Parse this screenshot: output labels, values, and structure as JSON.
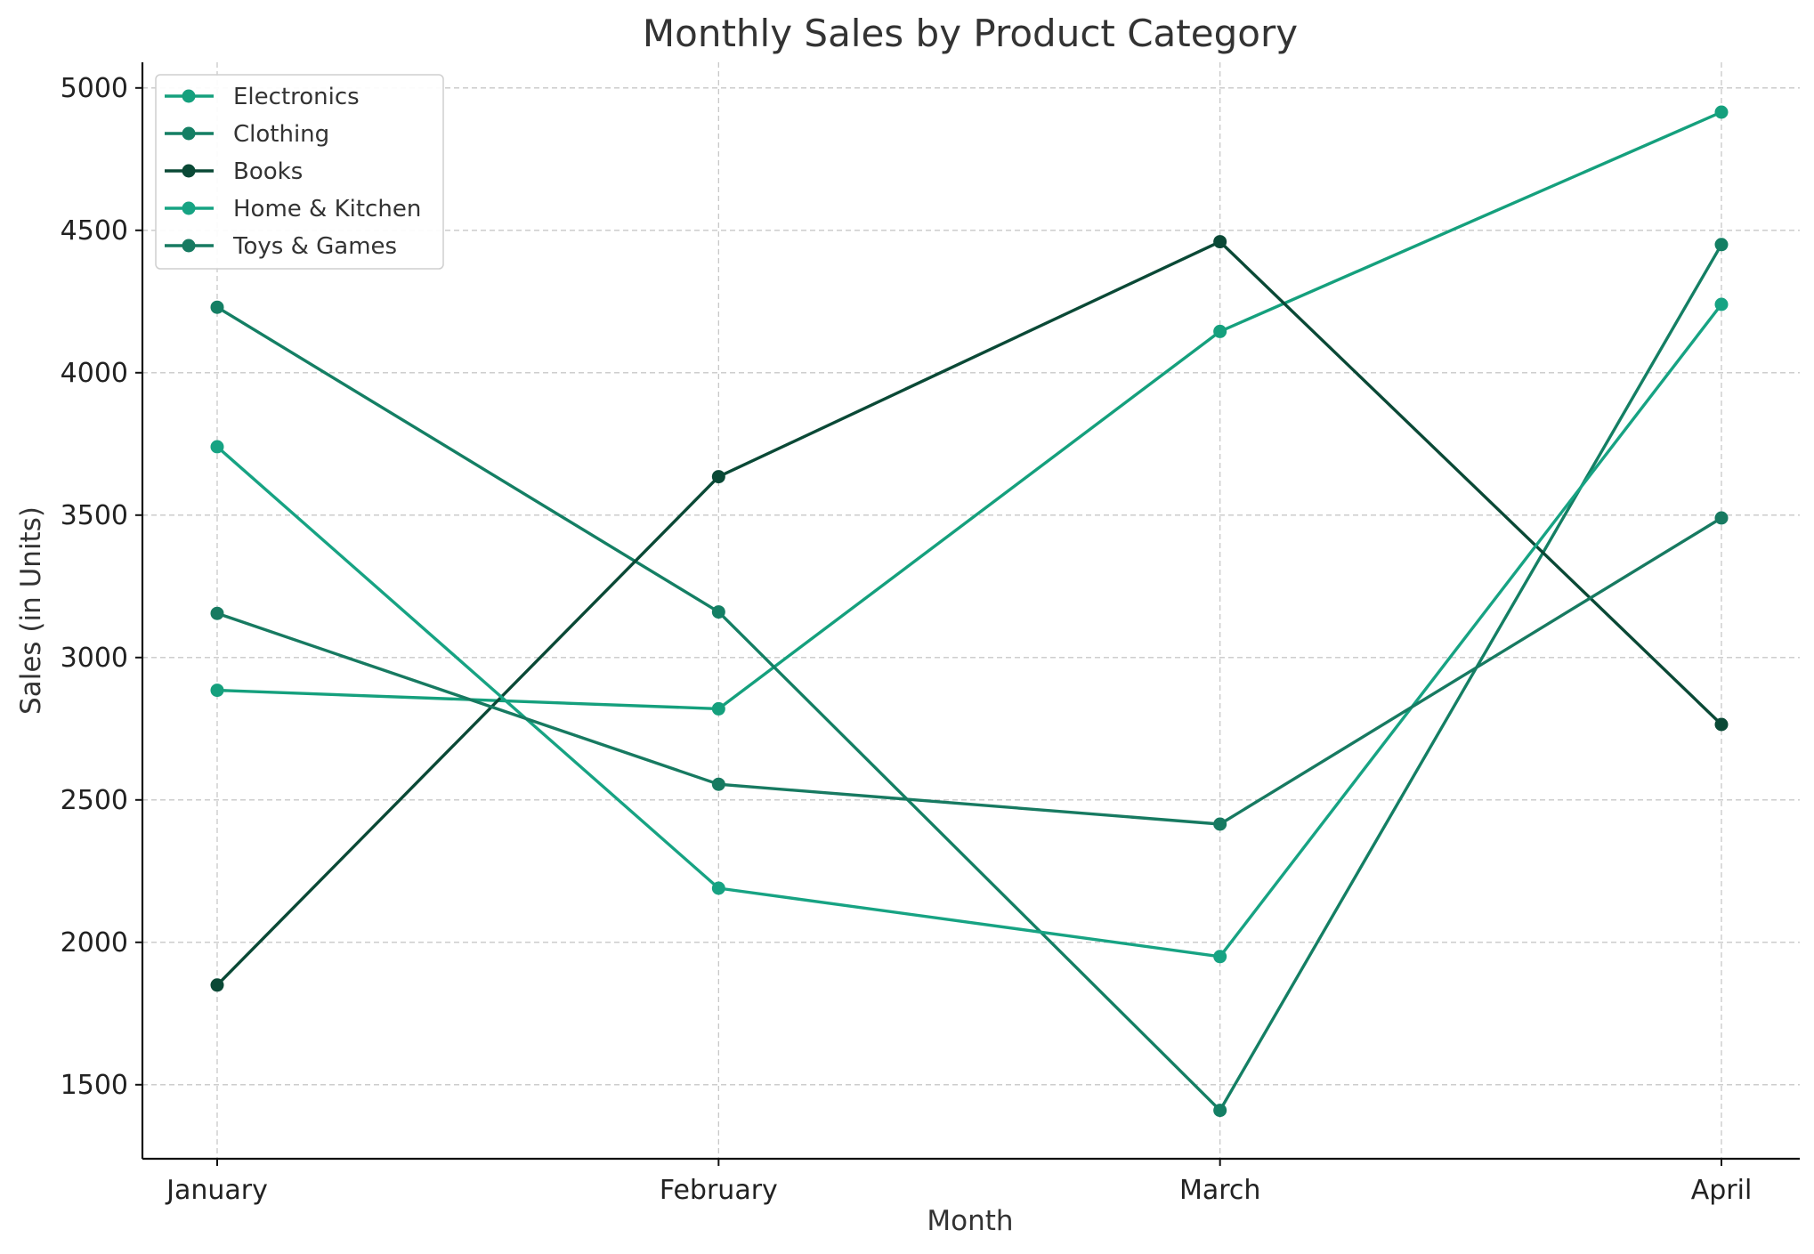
{
  "chart_data": {
    "type": "line",
    "title": "Monthly Sales by Product Category",
    "xlabel": "Month",
    "ylabel": "Sales (in Units)",
    "categories": [
      "January",
      "February",
      "March",
      "April"
    ],
    "ylim": [
      1240,
      5090
    ],
    "yticks": [
      1500,
      2000,
      2500,
      3000,
      3500,
      4000,
      4500,
      5000
    ],
    "grid": true,
    "legend_position": "top-left",
    "series": [
      {
        "name": "Electronics",
        "color": "#15a07d",
        "values": [
          2885,
          2820,
          4145,
          4915
        ]
      },
      {
        "name": "Clothing",
        "color": "#147f64",
        "values": [
          4230,
          3160,
          1410,
          4450
        ]
      },
      {
        "name": "Books",
        "color": "#0a4936",
        "values": [
          1850,
          3635,
          4460,
          2765
        ]
      },
      {
        "name": "Home & Kitchen",
        "color": "#17a383",
        "values": [
          3740,
          2190,
          1950,
          4240
        ]
      },
      {
        "name": "Toys & Games",
        "color": "#177a61",
        "values": [
          3155,
          2555,
          2415,
          3490
        ]
      }
    ]
  }
}
